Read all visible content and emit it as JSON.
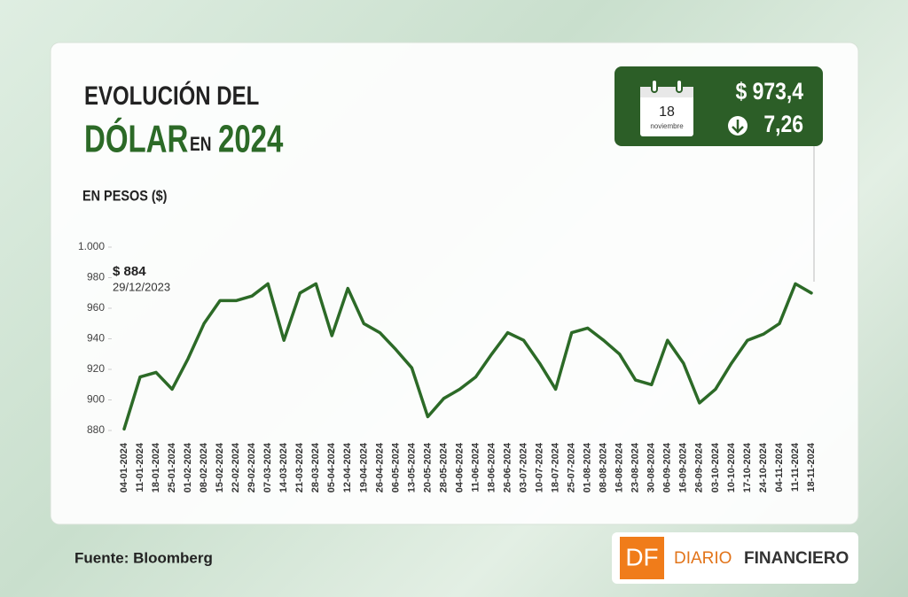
{
  "chart_data": {
    "type": "line",
    "title": {
      "line1": "EVOLUCIÓN DEL",
      "dolar": "DÓLAR",
      "en": "EN",
      "year": "2024"
    },
    "subtitle": "EN PESOS ($)",
    "categories": [
      "04-01-2024",
      "11-01-2024",
      "18-01-2024",
      "25-01-2024",
      "01-02-2024",
      "08-02-2024",
      "15-02-2024",
      "22-02-2024",
      "29-02-2024",
      "07-03-2024",
      "14-03-2024",
      "21-03-2024",
      "28-03-2024",
      "05-04-2024",
      "12-04-2024",
      "19-04-2024",
      "26-04-2024",
      "06-05-2024",
      "13-05-2024",
      "20-05-2024",
      "28-05-2024",
      "04-06-2024",
      "11-06-2024",
      "18-06-2024",
      "26-06-2024",
      "03-07-2024",
      "10-07-2024",
      "18-07-2024",
      "25-07-2024",
      "01-08-2024",
      "08-08-2024",
      "16-08-2024",
      "23-08-2024",
      "30-08-2024",
      "06-09-2024",
      "16-09-2024",
      "26-09-2024",
      "03-10-2024",
      "10-10-2024",
      "17-10-2024",
      "24-10-2024",
      "04-11-2024",
      "11-11-2024",
      "18-11-2024"
    ],
    "series": [
      {
        "name": "Dólar",
        "color": "#2c6a27",
        "values": [
          881,
          915,
          918,
          907,
          927,
          950,
          965,
          965,
          968,
          976,
          939,
          970,
          976,
          942,
          973,
          950,
          944,
          933,
          921,
          889,
          901,
          907,
          915,
          930,
          944,
          939,
          924,
          907,
          944,
          947,
          939,
          930,
          913,
          910,
          939,
          924,
          898,
          907,
          924,
          939,
          943,
          950,
          976,
          970
        ]
      }
    ],
    "ylim": [
      880,
      1000
    ],
    "yticks": [
      880,
      900,
      920,
      940,
      960,
      980,
      {
        "value": 1000,
        "label": "1.000"
      }
    ],
    "grid": false,
    "annotations": [
      {
        "label": "$ 884",
        "date": "29/12/2023"
      }
    ],
    "badge": {
      "day": "18",
      "month": "noviembre",
      "price": "$ 973,4",
      "change": "7,26"
    }
  },
  "source": "Fuente: Bloomberg",
  "brand": {
    "logo": "DF",
    "name1": "DIARIO",
    "name2": "FINANCIERO"
  }
}
